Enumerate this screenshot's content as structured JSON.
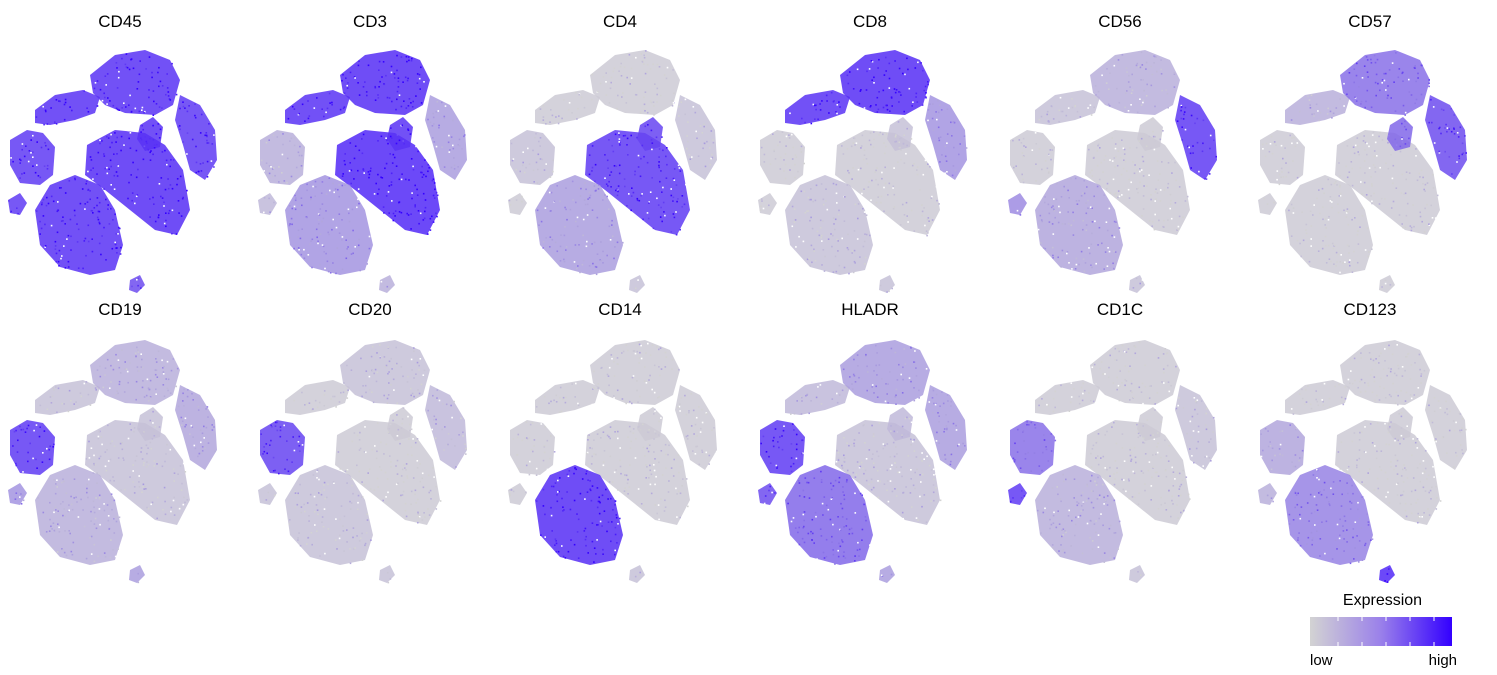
{
  "chart_data": {
    "type": "scatter",
    "layout": {
      "rows": 2,
      "columns": 6
    },
    "panels": [
      {
        "title": "CD45",
        "expression": {
          "cd8_island": 0.9,
          "top_left_cap": 0.9,
          "center_t": 0.92,
          "small_ring": 0.9,
          "nk_right": 0.85,
          "b_cells": 0.85,
          "monocytes": 0.9,
          "lower_left_bits": 0.85,
          "tail": 0.75
        }
      },
      {
        "title": "CD3",
        "expression": {
          "cd8_island": 0.92,
          "top_left_cap": 0.9,
          "center_t": 0.95,
          "small_ring": 0.9,
          "nk_right": 0.3,
          "b_cells": 0.2,
          "monocytes": 0.35,
          "lower_left_bits": 0.15,
          "tail": 0.2
        }
      },
      {
        "title": "CD4",
        "expression": {
          "cd8_island": 0.05,
          "top_left_cap": 0.05,
          "center_t": 0.85,
          "small_ring": 0.8,
          "nk_right": 0.1,
          "b_cells": 0.1,
          "monocytes": 0.3,
          "lower_left_bits": 0.05,
          "tail": 0.1
        }
      },
      {
        "title": "CD8",
        "expression": {
          "cd8_island": 0.92,
          "top_left_cap": 0.9,
          "center_t": 0.05,
          "small_ring": 0.1,
          "nk_right": 0.35,
          "b_cells": 0.05,
          "monocytes": 0.1,
          "lower_left_bits": 0.05,
          "tail": 0.1
        }
      },
      {
        "title": "CD56",
        "expression": {
          "cd8_island": 0.2,
          "top_left_cap": 0.1,
          "center_t": 0.05,
          "small_ring": 0.05,
          "nk_right": 0.85,
          "b_cells": 0.05,
          "monocytes": 0.25,
          "lower_left_bits": 0.4,
          "tail": 0.1
        }
      },
      {
        "title": "CD57",
        "expression": {
          "cd8_island": 0.55,
          "top_left_cap": 0.2,
          "center_t": 0.05,
          "small_ring": 0.6,
          "nk_right": 0.75,
          "b_cells": 0.05,
          "monocytes": 0.05,
          "lower_left_bits": 0.05,
          "tail": 0.05
        }
      },
      {
        "title": "CD19",
        "expression": {
          "cd8_island": 0.2,
          "top_left_cap": 0.1,
          "center_t": 0.1,
          "small_ring": 0.1,
          "nk_right": 0.25,
          "b_cells": 0.85,
          "monocytes": 0.2,
          "lower_left_bits": 0.35,
          "tail": 0.3
        }
      },
      {
        "title": "CD20",
        "expression": {
          "cd8_island": 0.1,
          "top_left_cap": 0.05,
          "center_t": 0.05,
          "small_ring": 0.05,
          "nk_right": 0.15,
          "b_cells": 0.8,
          "monocytes": 0.1,
          "lower_left_bits": 0.1,
          "tail": 0.1
        }
      },
      {
        "title": "CD14",
        "expression": {
          "cd8_island": 0.05,
          "top_left_cap": 0.05,
          "center_t": 0.05,
          "small_ring": 0.05,
          "nk_right": 0.05,
          "b_cells": 0.05,
          "monocytes": 0.92,
          "lower_left_bits": 0.05,
          "tail": 0.1
        }
      },
      {
        "title": "HLADR",
        "expression": {
          "cd8_island": 0.3,
          "top_left_cap": 0.15,
          "center_t": 0.1,
          "small_ring": 0.15,
          "nk_right": 0.3,
          "b_cells": 0.85,
          "monocytes": 0.6,
          "lower_left_bits": 0.75,
          "tail": 0.3
        }
      },
      {
        "title": "CD1C",
        "expression": {
          "cd8_island": 0.05,
          "top_left_cap": 0.05,
          "center_t": 0.05,
          "small_ring": 0.05,
          "nk_right": 0.1,
          "b_cells": 0.55,
          "monocytes": 0.2,
          "lower_left_bits": 0.85,
          "tail": 0.1
        }
      },
      {
        "title": "CD123",
        "expression": {
          "cd8_island": 0.05,
          "top_left_cap": 0.05,
          "center_t": 0.05,
          "small_ring": 0.05,
          "nk_right": 0.05,
          "b_cells": 0.25,
          "monocytes": 0.45,
          "lower_left_bits": 0.2,
          "tail": 0.95
        }
      }
    ],
    "colorscale": {
      "title": "Expression",
      "low_label": "low",
      "high_label": "high",
      "low_color": "#d3d3d3",
      "high_color": "#3300ff"
    },
    "legend_position": "bottom-right",
    "grid": false,
    "axes_visible": false
  }
}
